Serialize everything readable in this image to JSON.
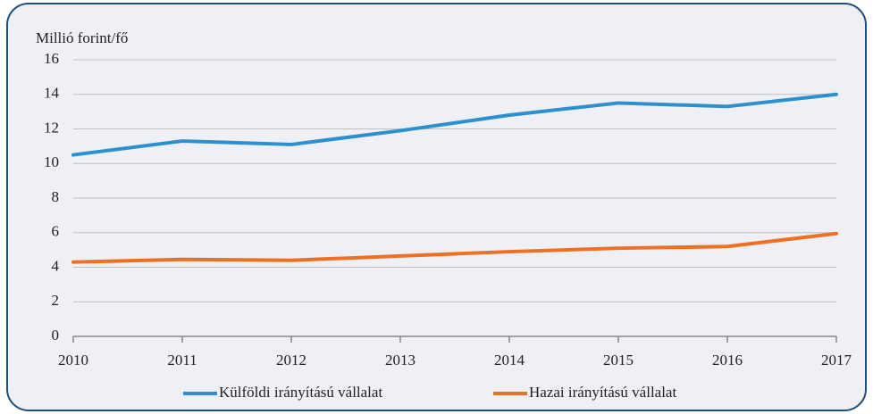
{
  "chart_data": {
    "type": "line",
    "y_label": "Millió forint/fő",
    "categories": [
      "2010",
      "2011",
      "2012",
      "2013",
      "2014",
      "2015",
      "2016",
      "2017"
    ],
    "series": [
      {
        "name": "Külföldi irányítású vállalat",
        "color": "#2e8fce",
        "values": [
          10.5,
          11.3,
          11.1,
          11.9,
          12.8,
          13.5,
          13.3,
          14.0
        ]
      },
      {
        "name": "Hazai irányítású vállalat",
        "color": "#f07023",
        "values": [
          4.3,
          4.45,
          4.4,
          4.65,
          4.9,
          5.1,
          5.2,
          5.95
        ]
      }
    ],
    "ylim": [
      0,
      16
    ],
    "yticks": [
      0,
      2,
      4,
      6,
      8,
      10,
      12,
      14,
      16
    ],
    "grid": true,
    "legend": "bottom"
  }
}
